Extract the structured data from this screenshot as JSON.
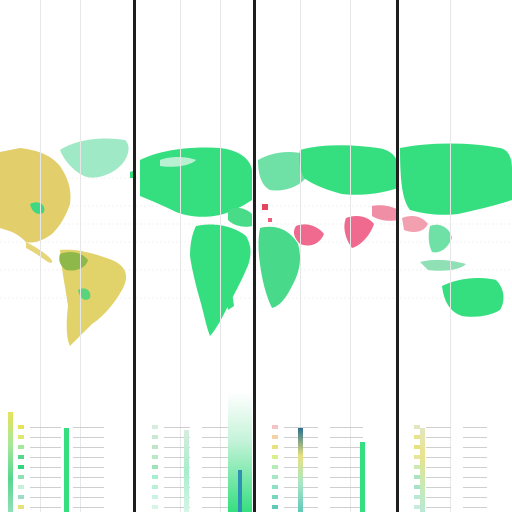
{
  "panels": [
    {
      "id": "panel-1",
      "legend_header": "",
      "legend_swatches": [
        "#e6e35a",
        "#dfe86d",
        "#a5e89b",
        "#58d68f",
        "#2fd77b",
        "#8fe0b5",
        "#c8efd9",
        "#a0dccb",
        "#e3e37a"
      ]
    },
    {
      "id": "panel-2",
      "legend_header": "",
      "legend_swatches": [
        "#d8ecde",
        "#c9e9d2",
        "#bfe4c8",
        "#b8eac5",
        "#9fe3ba",
        "#a6eecd",
        "#b9f0d6",
        "#cbf3e1",
        "#d7f5e7"
      ]
    },
    {
      "id": "panel-3",
      "legend_header": "",
      "legend_swatches": [
        "#f1c5c5",
        "#f3d2a6",
        "#e7e27f",
        "#d9ee8d",
        "#b6eab6",
        "#a7e6c7",
        "#8fdfc7",
        "#79d4c0",
        "#5fc9b8"
      ]
    },
    {
      "id": "panel-4",
      "legend_header": "",
      "legend_swatches": [
        "#e2e7c0",
        "#e8e38c",
        "#e6e27c",
        "#e7e59a",
        "#c9eab3",
        "#ace3c2",
        "#a6e2c6",
        "#b9e9d5",
        "#c7ecdc"
      ]
    }
  ],
  "colors": {
    "green": "#35df7f",
    "light_green": "#8fe9c2",
    "yellow": "#e2ce6b",
    "olive": "#8fb84a",
    "pink": "#ef6a8e",
    "divider": "#1e1e1e"
  }
}
